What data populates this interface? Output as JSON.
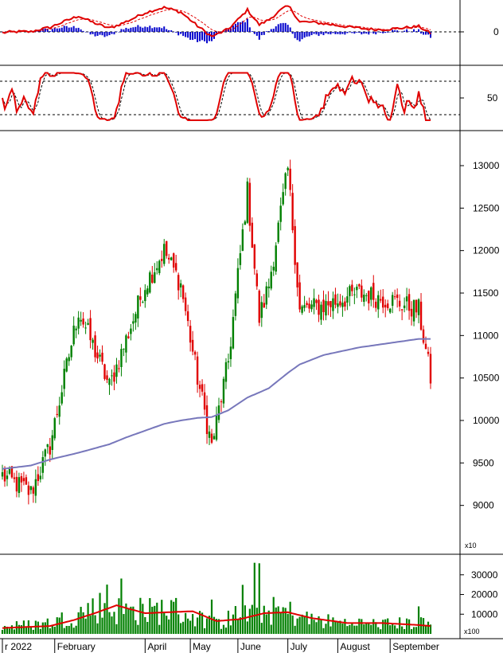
{
  "chart_data": [
    {
      "type": "line",
      "panel": "macd",
      "y_ticks": [
        0
      ],
      "ylim": [
        -1,
        1
      ],
      "series": [
        {
          "role": "macd-line",
          "color": "#e00000"
        },
        {
          "role": "signal-line",
          "color": "#e00000",
          "style": "dashed"
        },
        {
          "role": "histogram",
          "color": "#0000cc"
        }
      ]
    },
    {
      "type": "line",
      "panel": "stochastic",
      "y_ticks": [
        50
      ],
      "ylim": [
        0,
        100
      ],
      "reference_lines": [
        80,
        20
      ],
      "series": [
        {
          "role": "%K",
          "color": "#e00000"
        },
        {
          "role": "%D",
          "color": "#000000",
          "style": "dashed"
        }
      ]
    },
    {
      "type": "candlestick",
      "panel": "price",
      "y_ticks": [
        9000,
        9500,
        10000,
        10500,
        11000,
        11500,
        12000,
        12500,
        13000
      ],
      "ylim": [
        8500,
        13300
      ],
      "y_unit_label": "x10",
      "up_color": "#008000",
      "down_color": "#e00000",
      "ma_color": "#7777bb",
      "anchors": [
        {
          "t": 0,
          "c": 9350,
          "ma": 9430
        },
        {
          "t": 12,
          "c": 9150,
          "ma": 9470
        },
        {
          "t": 20,
          "c": 9700,
          "ma": 9540
        },
        {
          "t": 32,
          "c": 11300,
          "ma": 9620
        },
        {
          "t": 45,
          "c": 10400,
          "ma": 9720
        },
        {
          "t": 52,
          "c": 10950,
          "ma": 9800
        },
        {
          "t": 60,
          "c": 11600,
          "ma": 9880
        },
        {
          "t": 68,
          "c": 12000,
          "ma": 9960
        },
        {
          "t": 75,
          "c": 11600,
          "ma": 10000
        },
        {
          "t": 82,
          "c": 10500,
          "ma": 10030
        },
        {
          "t": 88,
          "c": 9700,
          "ma": 10040
        },
        {
          "t": 95,
          "c": 10700,
          "ma": 10120
        },
        {
          "t": 103,
          "c": 12700,
          "ma": 10270
        },
        {
          "t": 108,
          "c": 11200,
          "ma": 10330
        },
        {
          "t": 112,
          "c": 11600,
          "ma": 10380
        },
        {
          "t": 120,
          "c": 12950,
          "ma": 10560
        },
        {
          "t": 125,
          "c": 11300,
          "ma": 10660
        },
        {
          "t": 135,
          "c": 11350,
          "ma": 10770
        },
        {
          "t": 150,
          "c": 11500,
          "ma": 10860
        },
        {
          "t": 165,
          "c": 11400,
          "ma": 10920
        },
        {
          "t": 175,
          "c": 11300,
          "ma": 10960
        },
        {
          "t": 180,
          "c": 10500,
          "ma": 10960
        }
      ]
    },
    {
      "type": "bar",
      "panel": "volume",
      "y_ticks": [
        10000,
        20000,
        30000
      ],
      "ylim": [
        0,
        38000
      ],
      "y_unit_label": "x100",
      "bar_color": "#008000",
      "ma_color": "#e00000",
      "anchors": [
        {
          "t": 0,
          "v": 3500,
          "ma": 3000
        },
        {
          "t": 20,
          "v": 5500,
          "ma": 4000
        },
        {
          "t": 30,
          "v": 9000,
          "ma": 7000
        },
        {
          "t": 40,
          "v": 14000,
          "ma": 11000
        },
        {
          "t": 48,
          "v": 12000,
          "ma": 14500
        },
        {
          "t": 60,
          "v": 11000,
          "ma": 10500
        },
        {
          "t": 70,
          "v": 13000,
          "ma": 11000
        },
        {
          "t": 80,
          "v": 9000,
          "ma": 11500
        },
        {
          "t": 90,
          "v": 5000,
          "ma": 6500
        },
        {
          "t": 100,
          "v": 10000,
          "ma": 7500
        },
        {
          "t": 110,
          "v": 12000,
          "ma": 10500
        },
        {
          "t": 120,
          "v": 11000,
          "ma": 11000
        },
        {
          "t": 130,
          "v": 7000,
          "ma": 8000
        },
        {
          "t": 145,
          "v": 5500,
          "ma": 5500
        },
        {
          "t": 160,
          "v": 5000,
          "ma": 5500
        },
        {
          "t": 175,
          "v": 5500,
          "ma": 4500
        },
        {
          "t": 180,
          "v": 4500,
          "ma": 4000
        }
      ]
    }
  ],
  "x_axis": {
    "labels": [
      {
        "t": 0,
        "label": "r 2022"
      },
      {
        "t": 22,
        "label": "February"
      },
      {
        "t": 60,
        "label": "April"
      },
      {
        "t": 79,
        "label": "May"
      },
      {
        "t": 99,
        "label": "June"
      },
      {
        "t": 120,
        "label": "July"
      },
      {
        "t": 141,
        "label": "August"
      },
      {
        "t": 163,
        "label": "September"
      }
    ]
  }
}
